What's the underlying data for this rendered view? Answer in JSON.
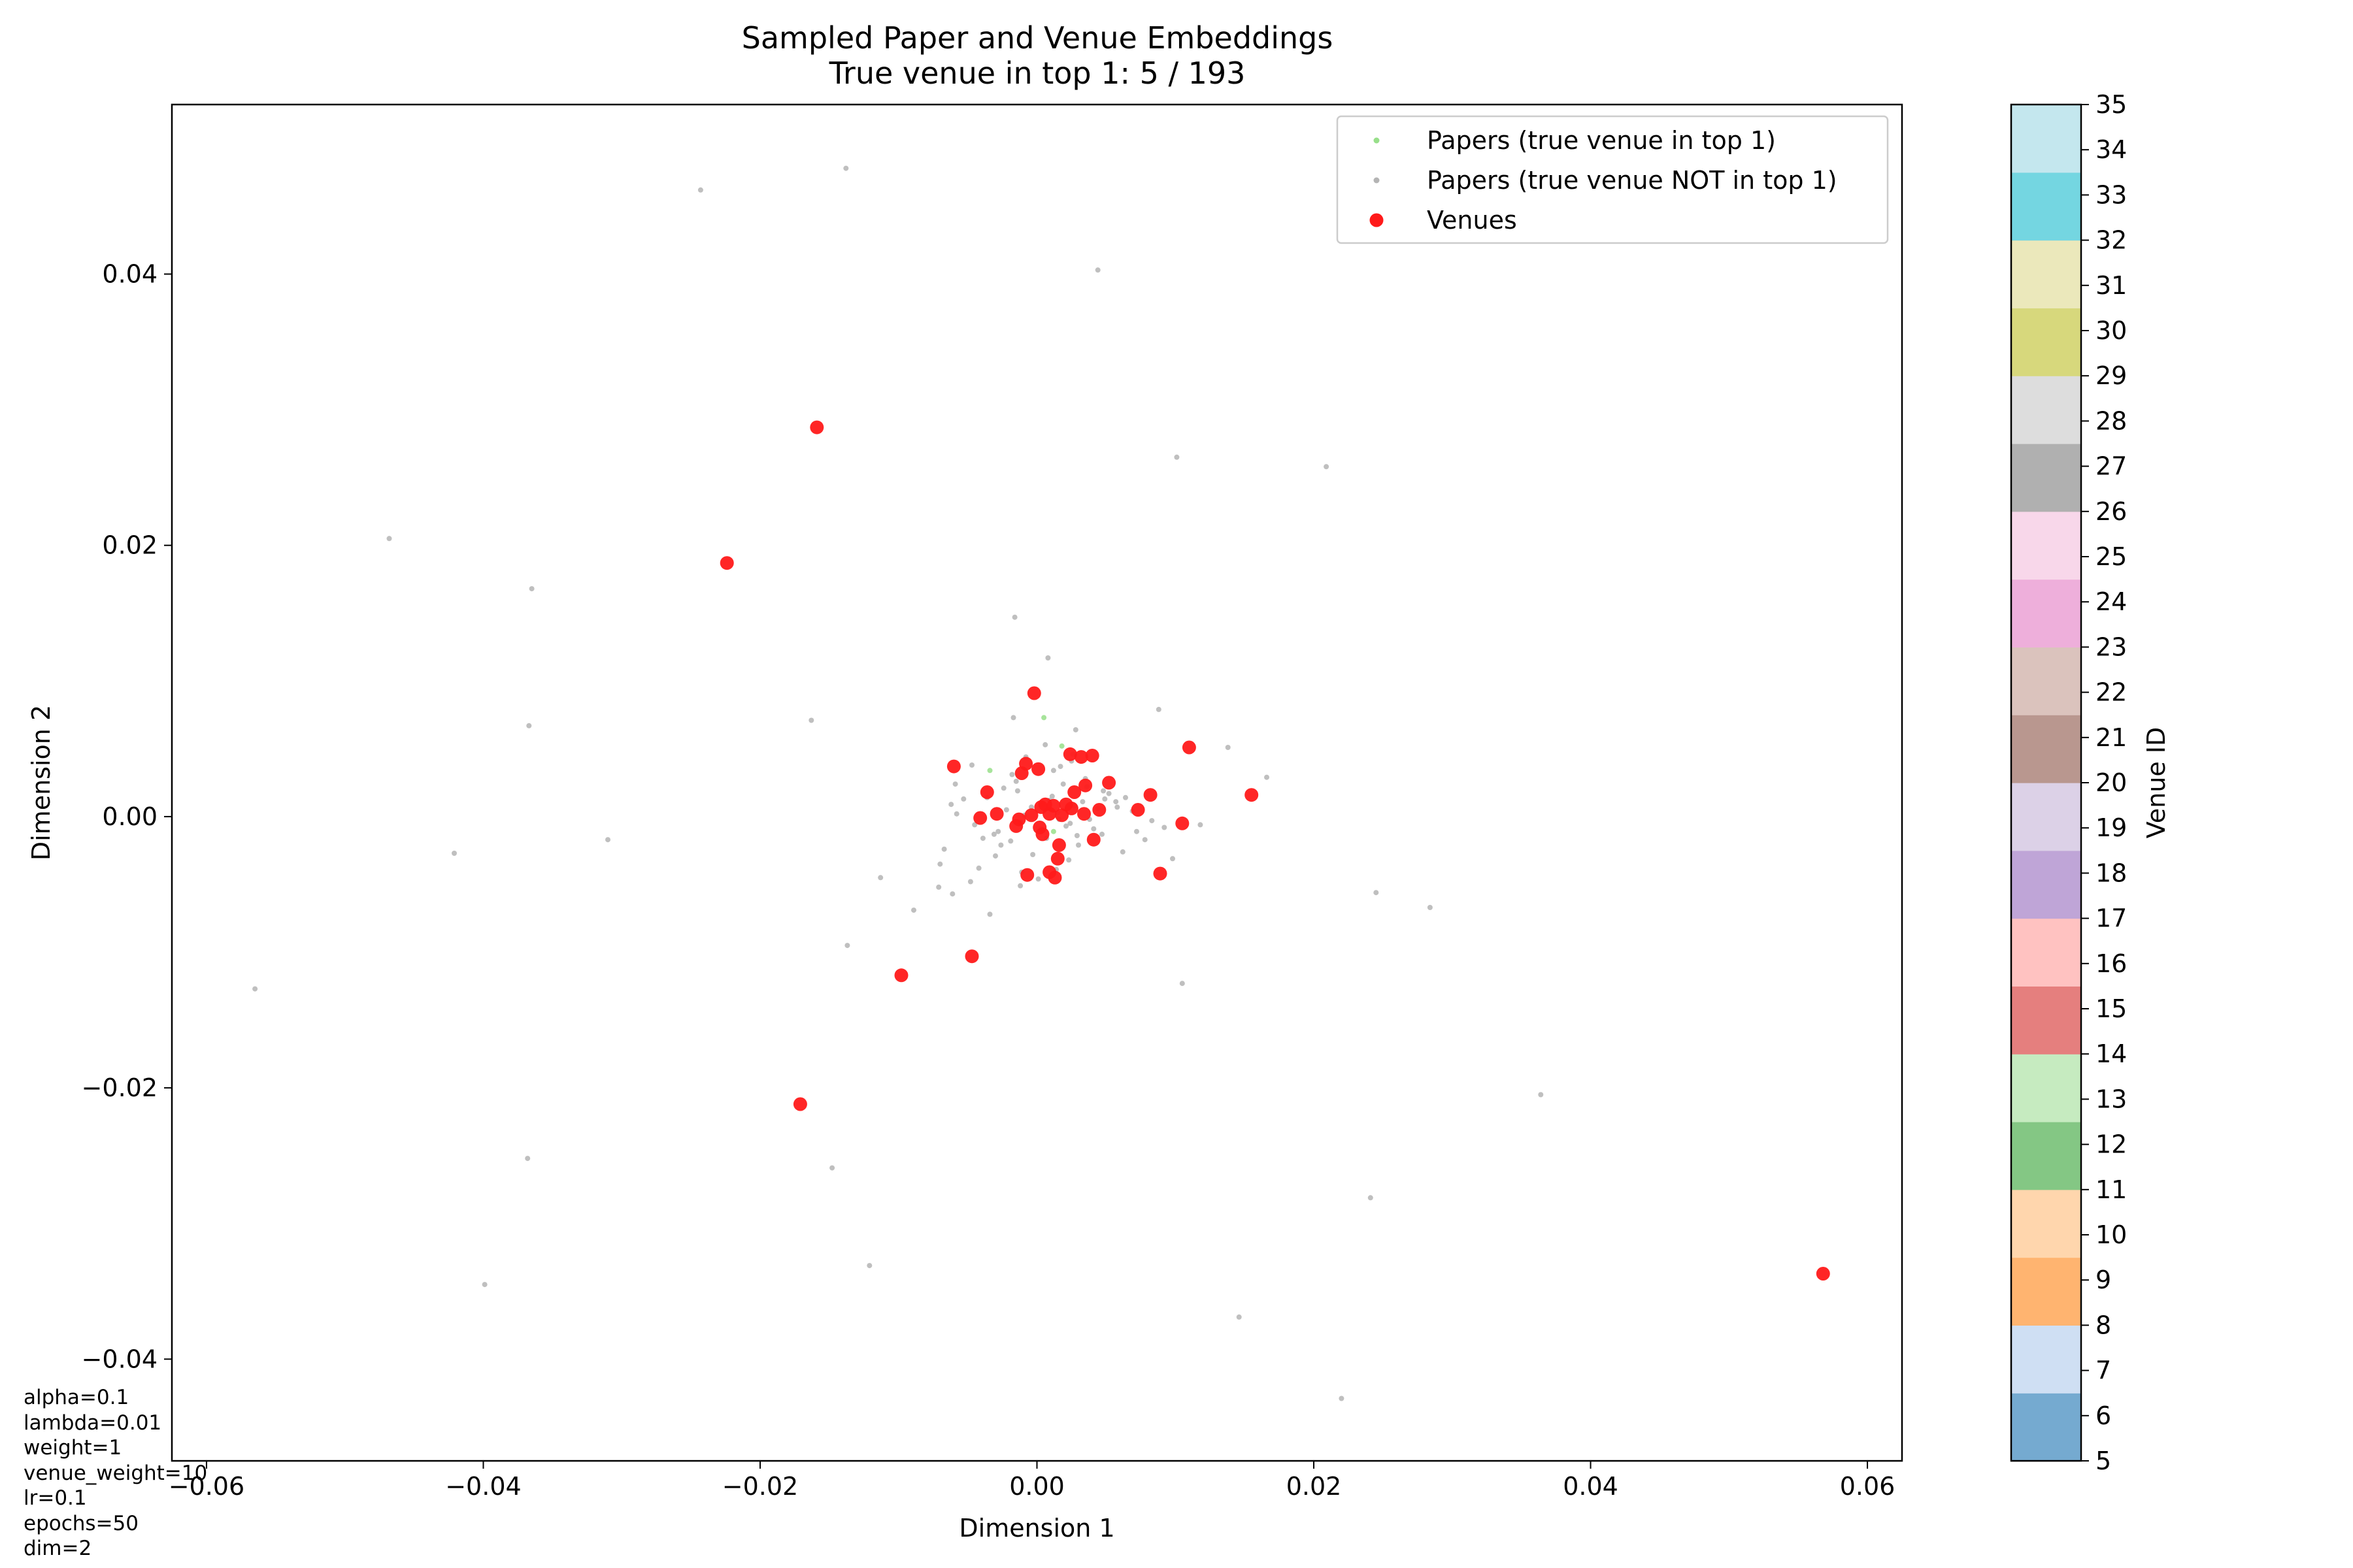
{
  "chart_data": {
    "type": "scatter",
    "title": "Sampled Paper and Venue Embeddings",
    "subtitle": "True venue in top 1: 5 / 193",
    "xlabel": "Dimension 1",
    "ylabel": "Dimension 2",
    "xlim": [
      -0.0625,
      0.0625
    ],
    "ylim": [
      -0.0475,
      0.0525
    ],
    "xticks": [
      -0.06,
      -0.04,
      -0.02,
      0.0,
      0.02,
      0.04,
      0.06
    ],
    "xtick_labels": [
      "−0.06",
      "−0.04",
      "−0.02",
      "0.00",
      "0.02",
      "0.04",
      "0.06"
    ],
    "yticks": [
      -0.04,
      -0.02,
      0.0,
      0.02,
      0.04
    ],
    "ytick_labels": [
      "−0.04",
      "−0.02",
      "0.00",
      "0.02",
      "0.04"
    ],
    "grid": false,
    "legend": {
      "position": "top-right",
      "entries": [
        {
          "label": "Papers (true venue in top 1)",
          "color": "#98df8a",
          "marker": "small-dot"
        },
        {
          "label": "Papers (true venue NOT in top 1)",
          "color": "#b4b4b4",
          "marker": "small-dot"
        },
        {
          "label": "Venues",
          "color": "#ff1a1a",
          "marker": "circle"
        }
      ]
    },
    "colorbar": {
      "label": "Venue ID",
      "min": 5,
      "max": 35,
      "tick_labels": [
        "5",
        "6",
        "7",
        "8",
        "9",
        "10",
        "11",
        "12",
        "13",
        "14",
        "15",
        "16",
        "17",
        "18",
        "19",
        "20",
        "21",
        "22",
        "23",
        "24",
        "25",
        "26",
        "27",
        "28",
        "29",
        "30",
        "31",
        "32",
        "33",
        "34",
        "35"
      ],
      "colors": [
        "#75aad0",
        "#cfdff3",
        "#ffb470",
        "#ffd6ad",
        "#84c784",
        "#c6ebc0",
        "#e57f7e",
        "#ffc2c1",
        "#bfa5d7",
        "#dcd1e7",
        "#b9978f",
        "#dbc3bd",
        "#eeafdb",
        "#f8d7ea",
        "#b0b0b0",
        "#dddddd",
        "#d7d87c",
        "#ebe8bb",
        "#74d6e1",
        "#c4e7ee"
      ]
    },
    "series": [
      {
        "name": "Papers (true venue in top 1)",
        "color": "#98df8a",
        "x": [
          0.0005,
          0.0018,
          -0.0034,
          0.0004,
          0.0012
        ],
        "y": [
          0.0073,
          0.0052,
          0.0034,
          0.0009,
          -0.0011
        ]
      },
      {
        "name": "Papers (true venue NOT in top 1)",
        "color": "#b4b4b4",
        "x": [
          -0.0138,
          -0.0243,
          0.0044,
          -0.0468,
          -0.0365,
          0.0101,
          0.0209,
          -0.0367,
          -0.0163,
          -0.0016,
          0.0008,
          0.0088,
          -0.0421,
          -0.031,
          -0.0113,
          -0.0061,
          -0.0089,
          -0.0137,
          -0.0034,
          -0.0565,
          0.0105,
          0.0245,
          0.0284,
          0.0364,
          -0.0368,
          -0.0148,
          -0.0121,
          -0.0399,
          0.0146,
          0.0241,
          0.022,
          0.0138,
          0.0166,
          -0.0017,
          -0.0047,
          -0.0053,
          -0.0059,
          -0.0067,
          -0.007,
          -0.0042,
          -0.003,
          -0.0011,
          0.0001,
          0.0014,
          0.0023,
          0.003,
          0.0047,
          0.0062,
          0.0078,
          0.0092,
          -0.0062,
          -0.0058,
          -0.0045,
          -0.0036,
          -0.0024,
          -0.0018,
          -0.0008,
          0.0006,
          0.0017,
          0.0026,
          0.0035,
          0.0048,
          0.0057,
          0.0069,
          0.0083,
          -0.0028,
          -0.0019,
          -0.0012,
          -0.0004,
          0.0009,
          0.0021,
          0.0029,
          0.0038,
          0.0044,
          0.0052,
          -0.0009,
          0.0003,
          0.0011,
          0.0019,
          0.0027,
          -0.0022,
          -0.0031,
          -0.0015,
          0.0007,
          0.0015,
          0.0024,
          0.0033,
          0.0041,
          0.0049,
          0.0058,
          -0.0026,
          -0.0014,
          -0.0003,
          0.0012,
          0.0025,
          0.0036,
          -0.0039,
          0.0064,
          0.0072,
          -0.0071,
          0.0118,
          0.0098,
          -0.0048,
          0.0028,
          -0.0012,
          0.0016
        ],
        "y": [
          0.0478,
          0.0462,
          0.0403,
          0.0205,
          0.0168,
          0.0265,
          0.0258,
          0.0067,
          0.0071,
          0.0147,
          0.0117,
          0.0079,
          -0.0027,
          -0.0017,
          -0.0045,
          -0.0057,
          -0.0069,
          -0.0095,
          -0.0072,
          -0.0127,
          -0.0123,
          -0.0056,
          -0.0067,
          -0.0205,
          -0.0252,
          -0.0259,
          -0.0331,
          -0.0345,
          -0.0369,
          -0.0281,
          -0.0429,
          0.0051,
          0.0029,
          0.0073,
          0.0038,
          0.0013,
          0.0024,
          -0.0024,
          -0.0035,
          -0.0038,
          -0.0029,
          -0.0041,
          -0.0046,
          -0.0039,
          -0.0032,
          -0.0021,
          -0.0013,
          -0.0026,
          -0.0017,
          -0.0008,
          0.0009,
          0.0002,
          -0.0006,
          0.0014,
          0.0021,
          0.0031,
          0.0044,
          0.0053,
          0.0037,
          0.0046,
          0.0028,
          0.0019,
          0.0011,
          0.0004,
          -0.0003,
          -0.0011,
          -0.0018,
          -0.0004,
          0.0007,
          0.0012,
          -0.0007,
          -0.0014,
          -0.0002,
          0.0006,
          0.0017,
          0.0001,
          -0.0009,
          0.0015,
          0.0024,
          0.0008,
          0.0005,
          -0.0013,
          0.0026,
          -0.0016,
          0.0003,
          -0.0005,
          0.0011,
          -0.0009,
          0.0013,
          0.0007,
          -0.0021,
          0.0019,
          -0.0028,
          0.0034,
          0.0041,
          0.0022,
          -0.0016,
          0.0014,
          -0.0011,
          -0.0052,
          -0.0006,
          -0.0031,
          -0.0048,
          0.0064,
          -0.0051,
          -0.0002
        ]
      },
      {
        "name": "Venues",
        "color": "#ff1a1a",
        "x": [
          -0.0159,
          -0.0224,
          -0.0002,
          0.0024,
          0.0032,
          0.004,
          0.011,
          -0.006,
          -0.0011,
          0.0001,
          0.0052,
          0.0082,
          0.0155,
          -0.0036,
          0.0027,
          0.0035,
          0.0012,
          0.0003,
          -0.0029,
          -0.0041,
          -0.0004,
          0.0009,
          0.0018,
          0.0025,
          0.0034,
          0.0045,
          0.0073,
          0.0105,
          -0.0015,
          0.0004,
          0.0016,
          0.0041,
          0.0002,
          0.0015,
          0.0089,
          -0.0007,
          0.0009,
          0.0013,
          -0.0047,
          -0.0098,
          -0.0171,
          0.0568,
          -0.0008,
          0.0006,
          0.0021,
          -0.0013
        ],
        "y": [
          0.0287,
          0.0187,
          0.0091,
          0.0046,
          0.0044,
          0.0045,
          0.0051,
          0.0037,
          0.0032,
          0.0035,
          0.0025,
          0.0016,
          0.0016,
          0.0018,
          0.0018,
          0.0023,
          0.0008,
          0.0007,
          0.0002,
          -0.0001,
          0.0001,
          0.0002,
          0.0001,
          0.0006,
          0.0002,
          0.0005,
          0.0005,
          -0.0005,
          -0.0007,
          -0.0013,
          -0.0021,
          -0.0017,
          -0.0008,
          -0.0031,
          -0.0042,
          -0.0043,
          -0.0041,
          -0.0045,
          -0.0103,
          -0.0117,
          -0.0212,
          -0.0337,
          0.0039,
          0.0009,
          0.0009,
          -0.0002
        ]
      }
    ],
    "annotations": [
      "alpha=0.1",
      "lambda=0.01",
      "weight=1",
      "venue_weight=10",
      "lr=0.1",
      "epochs=50",
      "dim=2"
    ]
  }
}
